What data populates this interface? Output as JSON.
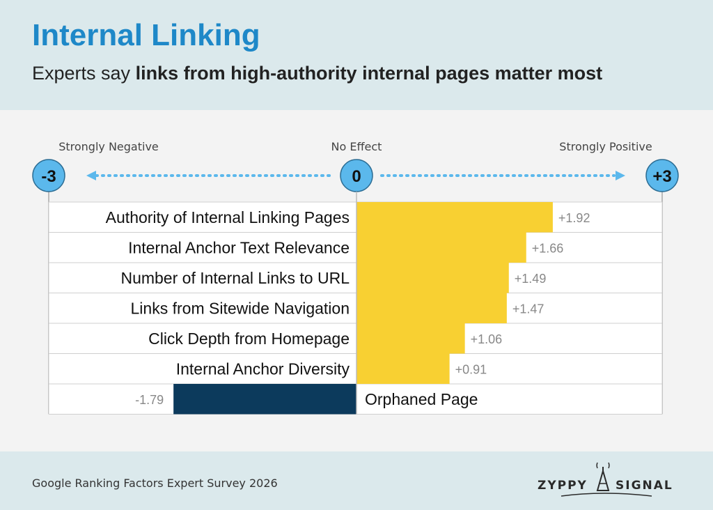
{
  "header": {
    "title": "Internal Linking",
    "subtitle_prefix": "Experts say ",
    "subtitle_bold": "links from high-authority internal pages matter most"
  },
  "scale": {
    "left_label": "Strongly Negative",
    "center_label": "No Effect",
    "right_label": "Strongly Positive",
    "left_value": "-3",
    "center_value": "0",
    "right_value": "+3"
  },
  "footer": {
    "source": "Google Ranking Factors Expert Survey 2026",
    "logo_left": "ZYPPY",
    "logo_right": "SIGNAL"
  },
  "colors": {
    "positive_bar": "#f8d032",
    "negative_bar": "#0c3a5c",
    "accent_blue": "#5bb8ec",
    "title_blue": "#1e88c8"
  },
  "chart_data": {
    "type": "bar",
    "orientation": "horizontal",
    "xlim": [
      -3,
      3
    ],
    "categories": [
      "Authority of Internal Linking Pages",
      "Internal Anchor Text Relevance",
      "Number of Internal Links to URL",
      "Links from Sitewide Navigation",
      "Click Depth from Homepage",
      "Internal Anchor Diversity",
      "Orphaned Page"
    ],
    "values": [
      1.92,
      1.66,
      1.49,
      1.47,
      1.06,
      0.91,
      -1.79
    ],
    "value_labels": [
      "+1.92",
      "+1.66",
      "+1.49",
      "+1.47",
      "+1.06",
      "+0.91",
      "-1.79"
    ]
  }
}
